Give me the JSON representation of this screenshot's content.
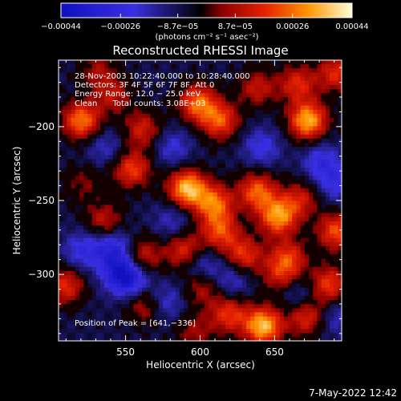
{
  "chart_data": {
    "type": "heatmap",
    "title": "Reconstructed RHESSI Image",
    "xlabel": "Heliocentric X (arcsec)",
    "ylabel": "Heliocentric Y (arcsec)",
    "xlim": [
      505,
      695
    ],
    "ylim": [
      -345,
      -155
    ],
    "x_ticks": [
      550,
      600,
      650
    ],
    "y_ticks": [
      -200,
      -250,
      -300
    ],
    "x_tick_labels": [
      "550",
      "600",
      "650"
    ],
    "y_tick_labels": [
      "−200",
      "−250",
      "−300"
    ],
    "colorbar": {
      "range": [
        -0.00044,
        0.00044
      ],
      "ticks": [
        -0.00044,
        -0.00026,
        -8.7e-05,
        8.7e-05,
        0.00026,
        0.00044
      ],
      "tick_labels": [
        "−0.00044",
        "−0.00026",
        "−8.7e−05",
        "8.7e−05",
        "0.00026",
        "0.00044"
      ],
      "unit_label": "(photons cm⁻² s⁻¹ asec⁻²)"
    },
    "annotations": [
      "28-Nov-2003 10:22:40.000 to 10:28:40.000",
      "Detectors: 3F 4F 5F 6F 7F 8F, Att 0",
      "Energy Range: 12.0 − 25.0 keV",
      "Clean      Total counts: 3.08E+03",
      "Position of Peak = [641,−336]"
    ],
    "peak": [
      641,
      -336
    ],
    "blobs": [
      {
        "x": 519,
        "y": -197,
        "v": 0.00035
      },
      {
        "x": 540,
        "y": -180,
        "v": 0.00018
      },
      {
        "x": 553,
        "y": -230,
        "v": 0.00028
      },
      {
        "x": 560,
        "y": -203,
        "v": 0.00022
      },
      {
        "x": 597,
        "y": -185,
        "v": 0.00033
      },
      {
        "x": 612,
        "y": -197,
        "v": 0.0003
      },
      {
        "x": 637,
        "y": -175,
        "v": 0.0002
      },
      {
        "x": 664,
        "y": -172,
        "v": 0.00024
      },
      {
        "x": 671,
        "y": -197,
        "v": 0.00042
      },
      {
        "x": 690,
        "y": -165,
        "v": 0.00025
      },
      {
        "x": 590,
        "y": -243,
        "v": 0.00044
      },
      {
        "x": 608,
        "y": -253,
        "v": 0.00033
      },
      {
        "x": 637,
        "y": -245,
        "v": 0.00032
      },
      {
        "x": 651,
        "y": -262,
        "v": 0.00038
      },
      {
        "x": 666,
        "y": -250,
        "v": 0.0002
      },
      {
        "x": 690,
        "y": -272,
        "v": 0.0003
      },
      {
        "x": 534,
        "y": -265,
        "v": 0.0002
      },
      {
        "x": 560,
        "y": -289,
        "v": 0.00022
      },
      {
        "x": 588,
        "y": -285,
        "v": 0.00025
      },
      {
        "x": 612,
        "y": -272,
        "v": 0.00028
      },
      {
        "x": 628,
        "y": -288,
        "v": 0.00026
      },
      {
        "x": 652,
        "y": -302,
        "v": 0.00018
      },
      {
        "x": 658,
        "y": -290,
        "v": 0.00025
      },
      {
        "x": 685,
        "y": -308,
        "v": 0.00028
      },
      {
        "x": 508,
        "y": -309,
        "v": 0.00025
      },
      {
        "x": 562,
        "y": -322,
        "v": 0.0002
      },
      {
        "x": 600,
        "y": -310,
        "v": 0.00018
      },
      {
        "x": 618,
        "y": -328,
        "v": 0.00026
      },
      {
        "x": 641,
        "y": -336,
        "v": 0.00044
      },
      {
        "x": 670,
        "y": -330,
        "v": 0.00025
      },
      {
        "x": 595,
        "y": -340,
        "v": 0.00015
      },
      {
        "x": 530,
        "y": -163,
        "v": 0.00015
      },
      {
        "x": 520,
        "y": -240,
        "v": 0.00012
      },
      {
        "x": 540,
        "y": -283,
        "v": -0.00022
      },
      {
        "x": 545,
        "y": -300,
        "v": -0.00025
      },
      {
        "x": 553,
        "y": -305,
        "v": -0.0002
      },
      {
        "x": 520,
        "y": -285,
        "v": -0.00018
      },
      {
        "x": 575,
        "y": -320,
        "v": -0.00016
      },
      {
        "x": 600,
        "y": -295,
        "v": -0.00016
      },
      {
        "x": 620,
        "y": -305,
        "v": -0.00014
      },
      {
        "x": 580,
        "y": -215,
        "v": -0.00014
      },
      {
        "x": 640,
        "y": -215,
        "v": -0.00016
      },
      {
        "x": 580,
        "y": -265,
        "v": -0.00012
      },
      {
        "x": 680,
        "y": -225,
        "v": -0.00018
      },
      {
        "x": 690,
        "y": -240,
        "v": -0.00015
      },
      {
        "x": 535,
        "y": -215,
        "v": -0.00012
      },
      {
        "x": 665,
        "y": -315,
        "v": -0.00012
      },
      {
        "x": 690,
        "y": -330,
        "v": -0.00012
      }
    ]
  },
  "footer": {
    "timestamp": "7-May-2022 12:42"
  }
}
